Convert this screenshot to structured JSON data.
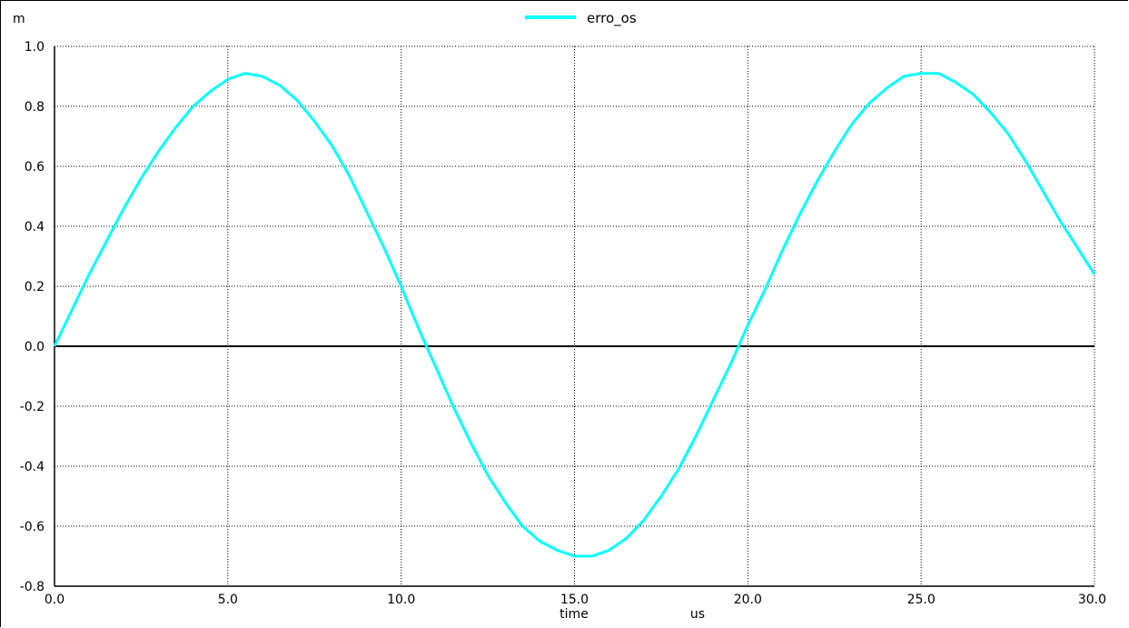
{
  "chart_data": {
    "type": "line",
    "title": "",
    "xlabel": "time",
    "x_unit": "us",
    "ylabel": "",
    "y_unit": "m",
    "xlim": [
      0,
      30
    ],
    "ylim": [
      -0.8,
      1.0
    ],
    "x_ticks": [
      "0.0",
      "5.0",
      "10.0",
      "15.0",
      "20.0",
      "25.0",
      "30.0"
    ],
    "y_ticks": [
      "1.0",
      "0.8",
      "0.6",
      "0.4",
      "0.2",
      "0.0",
      "-0.2",
      "-0.4",
      "-0.6",
      "-0.8"
    ],
    "grid": true,
    "legend_position": "top-center",
    "series": [
      {
        "name": "erro_os",
        "color": "#00ffff",
        "x": [
          0,
          0.5,
          1,
          1.5,
          2,
          2.5,
          3,
          3.5,
          4,
          4.5,
          5,
          5.5,
          6,
          6.5,
          7,
          7.5,
          8,
          8.5,
          9,
          9.5,
          10,
          10.5,
          11,
          11.5,
          12,
          12.5,
          13,
          13.5,
          14,
          14.5,
          15,
          15.5,
          16,
          16.5,
          17,
          17.5,
          18,
          18.5,
          19,
          19.5,
          20,
          20.5,
          21,
          21.5,
          22,
          22.5,
          23,
          23.5,
          24,
          24.5,
          25,
          25.5,
          26,
          26.5,
          27,
          27.5,
          28,
          28.5,
          29,
          29.5,
          30
        ],
        "values": [
          0,
          0.12,
          0.24,
          0.35,
          0.46,
          0.56,
          0.65,
          0.73,
          0.8,
          0.85,
          0.89,
          0.91,
          0.9,
          0.87,
          0.82,
          0.75,
          0.67,
          0.57,
          0.45,
          0.33,
          0.2,
          0.06,
          -0.07,
          -0.2,
          -0.32,
          -0.43,
          -0.52,
          -0.6,
          -0.65,
          -0.68,
          -0.7,
          -0.7,
          -0.68,
          -0.64,
          -0.58,
          -0.5,
          -0.41,
          -0.3,
          -0.18,
          -0.06,
          0.07,
          0.19,
          0.32,
          0.44,
          0.55,
          0.65,
          0.74,
          0.81,
          0.86,
          0.9,
          0.91,
          0.91,
          0.88,
          0.84,
          0.78,
          0.71,
          0.62,
          0.52,
          0.42,
          0.33,
          0.24
        ]
      }
    ]
  }
}
